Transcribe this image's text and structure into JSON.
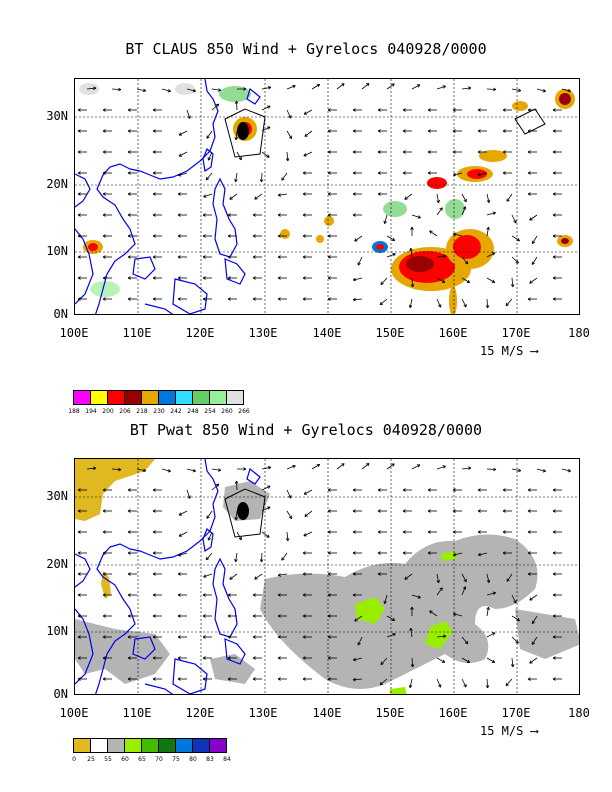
{
  "panels": [
    {
      "title": "BT CLAUS 850 Wind + Gyrelocs 040928/0000",
      "lat_labels": [
        "30N",
        "20N",
        "10N",
        "0N"
      ],
      "lon_labels": [
        "100E",
        "110E",
        "120E",
        "130E",
        "140E",
        "150E",
        "160E",
        "170E",
        "180"
      ],
      "scale_label": "15 M/S",
      "colorbar": {
        "colors": [
          "#ff00ff",
          "#ffff00",
          "#ff0000",
          "#990000",
          "#e6a800",
          "#0077dd",
          "#33ddff",
          "#66cc66",
          "#99ee99",
          "#e0e0e0"
        ],
        "labels": [
          "188",
          "194",
          "200",
          "206",
          "218",
          "230",
          "242",
          "248",
          "254",
          "260",
          "266"
        ]
      }
    },
    {
      "title": "BT Pwat 850 Wind + Gyrelocs 040928/0000",
      "lat_labels": [
        "30N",
        "20N",
        "10N",
        "0N"
      ],
      "lon_labels": [
        "100E",
        "110E",
        "120E",
        "130E",
        "140E",
        "150E",
        "160E",
        "170E",
        "180"
      ],
      "scale_label": "15 M/S",
      "colorbar": {
        "colors": [
          "#e0b820",
          "#ffffff",
          "#b4b4b4",
          "#99ee00",
          "#44bb00",
          "#117711",
          "#0077dd",
          "#1133bb",
          "#8800cc"
        ],
        "labels": [
          "0",
          "25",
          "55",
          "60",
          "65",
          "70",
          "75",
          "80",
          "83",
          "84"
        ]
      }
    }
  ],
  "colors": {
    "coastline": "#0000ee",
    "grid": "#000000",
    "gyre": "#000000"
  }
}
